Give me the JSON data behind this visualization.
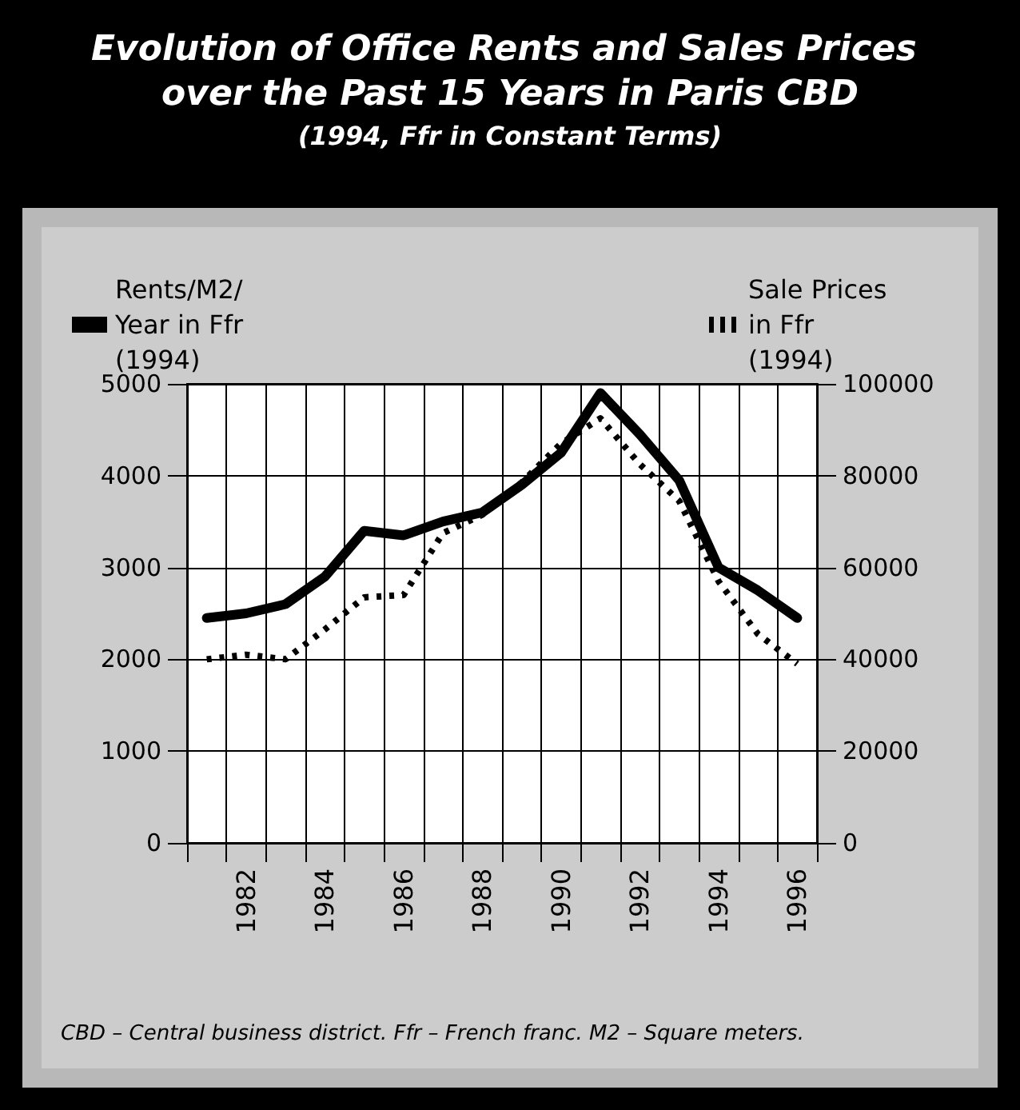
{
  "chart_data": {
    "type": "line",
    "title": "Evolution of Office Rents and Sales Prices over the Past 15 Years in Paris CBD",
    "subtitle": "(1994, Ffr in Constant Terms)",
    "categories": [
      null,
      "1982",
      null,
      "1984",
      null,
      "1986",
      null,
      "1988",
      null,
      "1990",
      null,
      "1992",
      null,
      "1994",
      null,
      "1996"
    ],
    "series": [
      {
        "name": "Rents/M2/Year in Ffr (1994)",
        "color": "#000000",
        "line_style": "solid",
        "values": [
          2450,
          2500,
          2600,
          2900,
          3400,
          3350,
          3500,
          3600,
          3900,
          4250,
          4900,
          4450,
          3950,
          3000,
          2750,
          2450
        ]
      },
      {
        "name": "Sale Prices in Ffr (1994)",
        "color": "#000000",
        "line_style": "dotted",
        "axis": "y2",
        "values": [
          40000,
          41000,
          40000,
          46500,
          53500,
          54000,
          67500,
          71500,
          78500,
          87000,
          92500,
          82500,
          74500,
          57000,
          45500,
          39000
        ]
      }
    ],
    "ylim": [
      0,
      5000
    ],
    "yticks": [
      0,
      1000,
      2000,
      3000,
      4000,
      5000
    ],
    "y2lim": [
      0,
      100000
    ],
    "y2ticks": [
      0,
      20000,
      40000,
      60000,
      80000,
      100000
    ],
    "grid": true,
    "legend": "top",
    "marker": "none",
    "annotations": [
      "CBD – Central business district. Ffr – French franc. M2 – Square meters."
    ]
  }
}
